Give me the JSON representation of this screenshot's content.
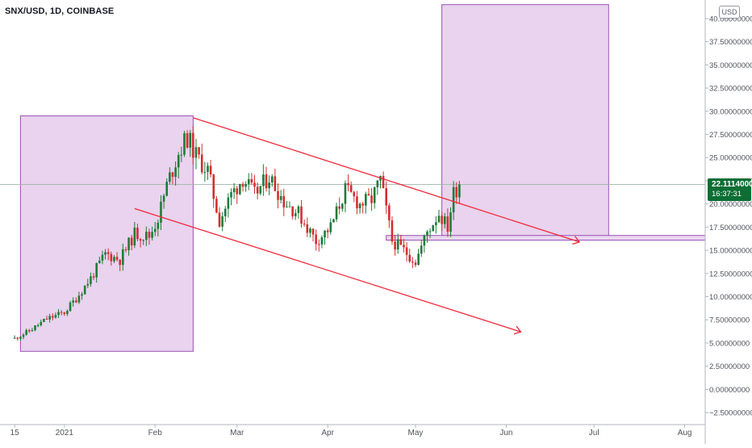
{
  "header": {
    "symbol_label": "SNX/USD, 1D, COINBASE",
    "currency": "USD"
  },
  "last_price": {
    "price": "22.11140000",
    "countdown": "16:37:31"
  },
  "chart_data": {
    "type": "candlestick",
    "title": "SNX/USD, 1D, COINBASE",
    "ylim": [
      -3.8,
      42
    ],
    "y_ticks": [
      -2.5,
      0,
      2.5,
      5,
      7.5,
      10,
      12.5,
      15,
      17.5,
      20,
      22.5,
      25,
      27.5,
      30,
      32.5,
      35,
      37.5,
      40
    ],
    "y_tick_labels": [
      "−2.50000000",
      "0.00000000",
      "2.50000000",
      "5.00000000",
      "7.50000000",
      "10.00000000",
      "12.50000000",
      "15.00000000",
      "17.50000000",
      "20.00000000",
      "22.50000000",
      "25.00000000",
      "27.50000000",
      "30.00000000",
      "32.50000000",
      "35.00000000",
      "37.50000000",
      "40.00000000"
    ],
    "x_range": [
      "2020-12-10",
      "2021-08-08"
    ],
    "x_ticks": [
      {
        "label": "15",
        "date": "2020-12-15"
      },
      {
        "label": "2021",
        "date": "2021-01-01"
      },
      {
        "label": "Feb",
        "date": "2021-02-01"
      },
      {
        "label": "Mar",
        "date": "2021-03-01"
      },
      {
        "label": "Apr",
        "date": "2021-04-01"
      },
      {
        "label": "May",
        "date": "2021-05-01"
      },
      {
        "label": "Jun",
        "date": "2021-06-01"
      },
      {
        "label": "Jul",
        "date": "2021-07-01"
      },
      {
        "label": "Aug",
        "date": "2021-08-01"
      }
    ],
    "current_price": 22.1114,
    "grid": false,
    "colors": {
      "up": "#1e7b3a",
      "down": "#d32f2f",
      "box_fill": "#e9d3ee",
      "box_stroke": "#9c4fb5",
      "trend_line": "#ef2a3b",
      "axis_text": "#50535e"
    },
    "anchor_points": [
      [
        "2020-12-15",
        5.5
      ],
      [
        "2020-12-20",
        6.3
      ],
      [
        "2020-12-26",
        7.6
      ],
      [
        "2021-01-01",
        8.3
      ],
      [
        "2021-01-05",
        9.8
      ],
      [
        "2021-01-10",
        12.0
      ],
      [
        "2021-01-15",
        14.6
      ],
      [
        "2021-01-20",
        14.0
      ],
      [
        "2021-01-25",
        16.8
      ],
      [
        "2021-01-30",
        16.5
      ],
      [
        "2021-02-02",
        18.5
      ],
      [
        "2021-02-05",
        22.0
      ],
      [
        "2021-02-09",
        25.5
      ],
      [
        "2021-02-12",
        27.2
      ],
      [
        "2021-02-15",
        25.2
      ],
      [
        "2021-02-19",
        23.6
      ],
      [
        "2021-02-23",
        18.2
      ],
      [
        "2021-02-27",
        21.0
      ],
      [
        "2021-03-03",
        22.8
      ],
      [
        "2021-03-07",
        21.0
      ],
      [
        "2021-03-12",
        23.0
      ],
      [
        "2021-03-17",
        20.3
      ],
      [
        "2021-03-22",
        19.0
      ],
      [
        "2021-03-28",
        16.0
      ],
      [
        "2021-04-02",
        17.5
      ],
      [
        "2021-04-07",
        21.5
      ],
      [
        "2021-04-12",
        20.0
      ],
      [
        "2021-04-16",
        20.5
      ],
      [
        "2021-04-19",
        22.6
      ],
      [
        "2021-04-23",
        16.0
      ],
      [
        "2021-04-27",
        15.0
      ],
      [
        "2021-05-01",
        13.8
      ],
      [
        "2021-05-05",
        17.0
      ],
      [
        "2021-05-09",
        19.0
      ],
      [
        "2021-05-12",
        17.5
      ],
      [
        "2021-05-14",
        21.2
      ],
      [
        "2021-05-16",
        22.11
      ]
    ],
    "boxes": [
      {
        "x0": "2020-12-17",
        "x1": "2021-02-14",
        "y0": 4.1,
        "y1": 29.5
      },
      {
        "x0": "2021-05-10",
        "x1": "2021-07-06",
        "y0": 16.4,
        "y1": 41.5
      }
    ],
    "trend_lines": [
      {
        "x0": "2021-02-14",
        "y0": 29.3,
        "x1": "2021-06-26",
        "y1": 15.9,
        "arrow": true
      },
      {
        "x0": "2021-01-25",
        "y0": 19.5,
        "x1": "2021-06-06",
        "y1": 6.2,
        "arrow": true
      }
    ],
    "support_band": {
      "x0": "2021-04-21",
      "x1": "2021-08-10",
      "y0": 16.1,
      "y1": 16.6
    }
  }
}
